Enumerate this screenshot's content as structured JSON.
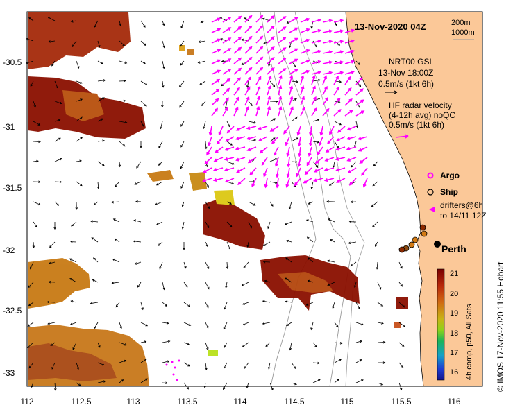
{
  "title": "13-Nov-2020 04Z",
  "scale_labels": [
    "200m",
    "1000m"
  ],
  "y_axis_labels": [
    "-30.5",
    "-31",
    "-31.5",
    "-32",
    "-32.5",
    "-33"
  ],
  "x_axis_labels": [
    "112",
    "112.5",
    "113",
    "113.5",
    "114",
    "114.5",
    "115",
    "115.5",
    "116"
  ],
  "legend": {
    "model_line1": "NRT00 GSL",
    "model_line2": "13-Nov 18:00Z",
    "model_line3": "0.5m/s (1kt 6h)",
    "radar_line1": "HF radar velocity",
    "radar_line2": "(4-12h avg) noQC",
    "radar_line3": "0.5m/s (1kt 6h)",
    "argo": "Argo",
    "ship": "Ship",
    "drifters_line1": "drifters@6h",
    "drifters_line2": "to 14/11 12Z"
  },
  "place_label": "Perth",
  "colorbar": {
    "ticks": [
      "21",
      "20",
      "19",
      "18",
      "17",
      "16"
    ],
    "label": "4h comp, p50, All Sats"
  },
  "credit": "© IMOS 17-Nov-2020 11:55 Hobart",
  "colors": {
    "land": "#fbc898",
    "radar_arrow": "#ff00ff",
    "sst_hot": "#8b0f00",
    "sst_mid": "#c87a14"
  }
}
